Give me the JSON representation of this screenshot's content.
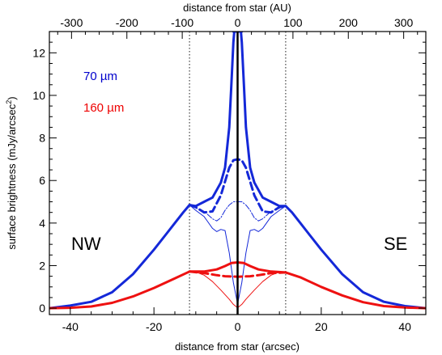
{
  "chart_data": {
    "type": "line",
    "title": "",
    "xlabel": "distance from star (arcsec)",
    "ylabel": "surface brightness (mJy/arcsec",
    "ylabel_sup": "2",
    "ylabel_close": ")",
    "top_xlabel": "distance from star (AU)",
    "xlim": [
      -45,
      45
    ],
    "ylim": [
      -0.3,
      13
    ],
    "top_xlim": [
      -340,
      340
    ],
    "x_ticks": [
      -40,
      -20,
      0,
      20,
      40
    ],
    "x_tick_labels": [
      "-40",
      "-20",
      "0",
      "20",
      "40"
    ],
    "y_ticks": [
      0,
      2,
      4,
      6,
      8,
      10,
      12
    ],
    "y_tick_labels": [
      "0",
      "2",
      "4",
      "6",
      "8",
      "10",
      "12"
    ],
    "top_ticks": [
      -300,
      -200,
      -100,
      0,
      100,
      200,
      300
    ],
    "top_tick_labels": [
      "-300",
      "-200",
      "-100",
      "0",
      "100",
      "200",
      "300"
    ],
    "vlines_dotted": [
      -11.5,
      11.5
    ],
    "vline_solid": 0,
    "annotations": [
      {
        "text": "70 µm",
        "color": "#0000cc"
      },
      {
        "text": "160 µm",
        "color": "#ee0000"
      },
      {
        "text": "NW",
        "color": "#000000"
      },
      {
        "text": "SE",
        "color": "#000000"
      }
    ],
    "series": [
      {
        "style": "solid-thick",
        "color": "#1428d8",
        "x": [
          -45,
          -40,
          -35,
          -30,
          -25,
          -20,
          -17,
          -15,
          -13,
          -11.5,
          -10,
          -8,
          -6,
          -4,
          -3,
          -2,
          -1.5,
          -1,
          -0.8,
          -0.8,
          -1,
          1,
          0.8,
          0.8,
          1,
          1.5,
          2,
          3,
          4,
          6,
          8,
          10,
          11.5,
          13,
          15,
          17,
          20,
          25,
          30,
          35,
          40,
          45
        ],
        "y": [
          0,
          0.12,
          0.3,
          0.75,
          1.6,
          2.75,
          3.5,
          4.0,
          4.5,
          4.85,
          4.8,
          5.0,
          5.2,
          5.9,
          6.6,
          8.5,
          10.5,
          12.5,
          13,
          13,
          13,
          13,
          13,
          13,
          12.5,
          10.5,
          8.5,
          6.6,
          5.9,
          5.2,
          5.0,
          4.8,
          4.8,
          4.5,
          4.0,
          3.5,
          2.75,
          1.6,
          0.75,
          0.3,
          0.1,
          0
        ]
      },
      {
        "style": "dashed-thick",
        "color": "#1428d8",
        "x": [
          -11.5,
          -10,
          -8,
          -6,
          -4,
          -2,
          -1,
          0,
          1,
          2,
          4,
          6,
          8,
          10,
          11.5
        ],
        "y": [
          4.85,
          4.75,
          4.5,
          4.55,
          5.3,
          6.6,
          6.95,
          7.0,
          6.95,
          6.6,
          5.3,
          4.55,
          4.5,
          4.75,
          4.8
        ]
      },
      {
        "style": "dashdot-thin",
        "color": "#1428d8",
        "x": [
          -11.5,
          -10,
          -8,
          -6,
          -5,
          -4,
          -3,
          -2,
          -1,
          0,
          1,
          2,
          3,
          4,
          5,
          6,
          8,
          10,
          11.5
        ],
        "y": [
          4.85,
          4.7,
          4.55,
          4.2,
          4.1,
          4.25,
          4.6,
          4.85,
          5.0,
          5.0,
          5.0,
          4.85,
          4.6,
          4.25,
          4.1,
          4.2,
          4.55,
          4.7,
          4.8
        ]
      },
      {
        "style": "solid-thin",
        "color": "#1428d8",
        "x": [
          -11.5,
          -10,
          -8,
          -6,
          -5,
          -4,
          -3,
          -2,
          -1,
          0,
          1,
          2,
          3,
          4,
          5,
          6,
          8,
          10,
          11.5
        ],
        "y": [
          4.85,
          4.6,
          4.3,
          3.75,
          3.6,
          3.7,
          3.65,
          2.6,
          1.2,
          0.2,
          1.2,
          2.6,
          3.65,
          3.7,
          3.6,
          3.75,
          4.3,
          4.6,
          4.8
        ]
      },
      {
        "style": "solid-thick",
        "color": "#ee1111",
        "x": [
          -45,
          -40,
          -35,
          -30,
          -25,
          -20,
          -15,
          -11.5,
          -8,
          -5,
          -3,
          -1.5,
          0,
          1.5,
          3,
          5,
          8,
          11.5,
          15,
          20,
          25,
          30,
          35,
          40,
          45
        ],
        "y": [
          0,
          0.02,
          0.08,
          0.25,
          0.55,
          0.95,
          1.4,
          1.72,
          1.72,
          1.82,
          1.98,
          2.12,
          2.15,
          2.12,
          1.98,
          1.82,
          1.72,
          1.68,
          1.45,
          1.0,
          0.6,
          0.28,
          0.1,
          0.03,
          0
        ]
      },
      {
        "style": "dashed-thick",
        "color": "#ee1111",
        "x": [
          -11.5,
          -8,
          -5,
          -3,
          0,
          3,
          5,
          8,
          11.5
        ],
        "y": [
          1.72,
          1.65,
          1.55,
          1.5,
          1.48,
          1.5,
          1.55,
          1.65,
          1.68
        ]
      },
      {
        "style": "solid-thin",
        "color": "#ee1111",
        "x": [
          -11.5,
          -10,
          -8,
          -6,
          -4,
          -2,
          -1,
          0,
          1,
          2,
          4,
          6,
          8,
          10,
          11.5
        ],
        "y": [
          1.72,
          1.7,
          1.55,
          1.25,
          0.85,
          0.42,
          0.18,
          0.02,
          0.18,
          0.42,
          0.85,
          1.25,
          1.55,
          1.7,
          1.68
        ]
      }
    ]
  }
}
